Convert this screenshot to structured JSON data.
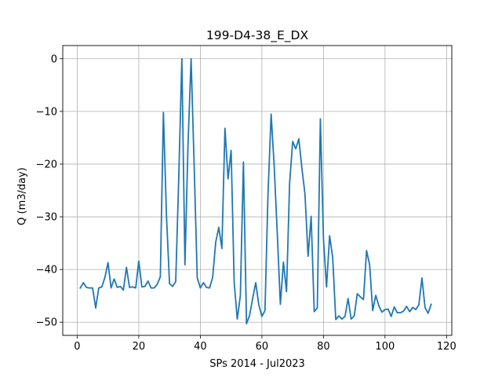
{
  "chart_data": {
    "type": "line",
    "title": "199-D4-38_E_DX",
    "xlabel": "SPs 2014 - Jul2023",
    "ylabel": "Q (m3/day)",
    "xlim": [
      -4.7,
      121.7
    ],
    "ylim": [
      -52.5,
      2.5
    ],
    "xticks": [
      0,
      20,
      40,
      60,
      80,
      100,
      120
    ],
    "yticks": [
      0,
      -10,
      -20,
      -30,
      -40,
      -50
    ],
    "xtick_labels": [
      "0",
      "20",
      "40",
      "60",
      "80",
      "100",
      "120"
    ],
    "ytick_labels": [
      "0",
      "−10",
      "−20",
      "−30",
      "−40",
      "−50"
    ],
    "grid": true,
    "color": "#1f77b4",
    "series": [
      {
        "x": [
          1,
          2,
          3,
          4,
          5,
          6,
          7,
          8,
          9,
          10,
          11,
          12,
          13,
          14,
          15,
          16,
          17,
          18,
          19,
          20,
          21,
          22,
          23,
          24,
          25,
          26,
          27,
          28,
          29,
          30,
          31,
          32,
          33,
          34,
          35,
          36,
          37,
          38,
          39,
          40,
          41,
          42,
          43,
          44,
          45,
          46,
          47,
          48,
          49,
          50,
          51,
          52,
          53,
          54,
          55,
          56,
          57,
          58,
          59,
          60,
          61,
          62,
          63,
          64,
          65,
          66,
          67,
          68,
          69,
          70,
          71,
          72,
          73,
          74,
          75,
          76,
          77,
          78,
          79,
          80,
          81,
          82,
          83,
          84,
          85,
          86,
          87,
          88,
          89,
          90,
          91,
          92,
          93,
          94,
          95,
          96,
          97,
          98,
          99,
          100,
          101,
          102,
          103,
          104,
          105,
          106,
          107,
          108,
          109,
          110,
          111,
          112,
          113,
          114,
          115
        ],
        "y": [
          -43.5,
          -42.5,
          -43.4,
          -43.5,
          -43.5,
          -47.3,
          -43.5,
          -43.3,
          -41.5,
          -38.7,
          -43.5,
          -41.8,
          -43.4,
          -43.2,
          -43.9,
          -39.6,
          -43.4,
          -43.3,
          -43.5,
          -38.4,
          -43.3,
          -43.2,
          -42.2,
          -43.5,
          -43.5,
          -42.8,
          -41.4,
          -10.2,
          -29.8,
          -42.7,
          -43.2,
          -42.3,
          -22.3,
          0.0,
          -39.1,
          -16.2,
          0.0,
          -20.5,
          -41.6,
          -43.5,
          -42.5,
          -43.4,
          -43.5,
          -41.5,
          -34.8,
          -32.0,
          -36.0,
          -13.2,
          -22.8,
          -17.4,
          -42.5,
          -49.4,
          -45.0,
          -19.6,
          -50.3,
          -48.7,
          -45.5,
          -42.5,
          -46.7,
          -48.9,
          -47.8,
          -25.4,
          -10.5,
          -20.4,
          -33.2,
          -46.6,
          -38.6,
          -44.2,
          -23.7,
          -15.7,
          -17.1,
          -15.2,
          -20.8,
          -25.7,
          -37.5,
          -29.9,
          -48.0,
          -47.3,
          -11.4,
          -34.2,
          -43.3,
          -33.6,
          -37.7,
          -49.5,
          -48.8,
          -49.4,
          -48.9,
          -45.5,
          -49.4,
          -48.8,
          -44.6,
          -45.2,
          -45.7,
          -36.4,
          -39.1,
          -47.8,
          -44.9,
          -46.9,
          -48.1,
          -47.6,
          -47.5,
          -48.9,
          -47.1,
          -48.2,
          -48.2,
          -47.9,
          -47.0,
          -48.0,
          -47.2,
          -47.6,
          -46.7,
          -41.6,
          -47.2,
          -48.3,
          -46.6
        ]
      }
    ]
  }
}
